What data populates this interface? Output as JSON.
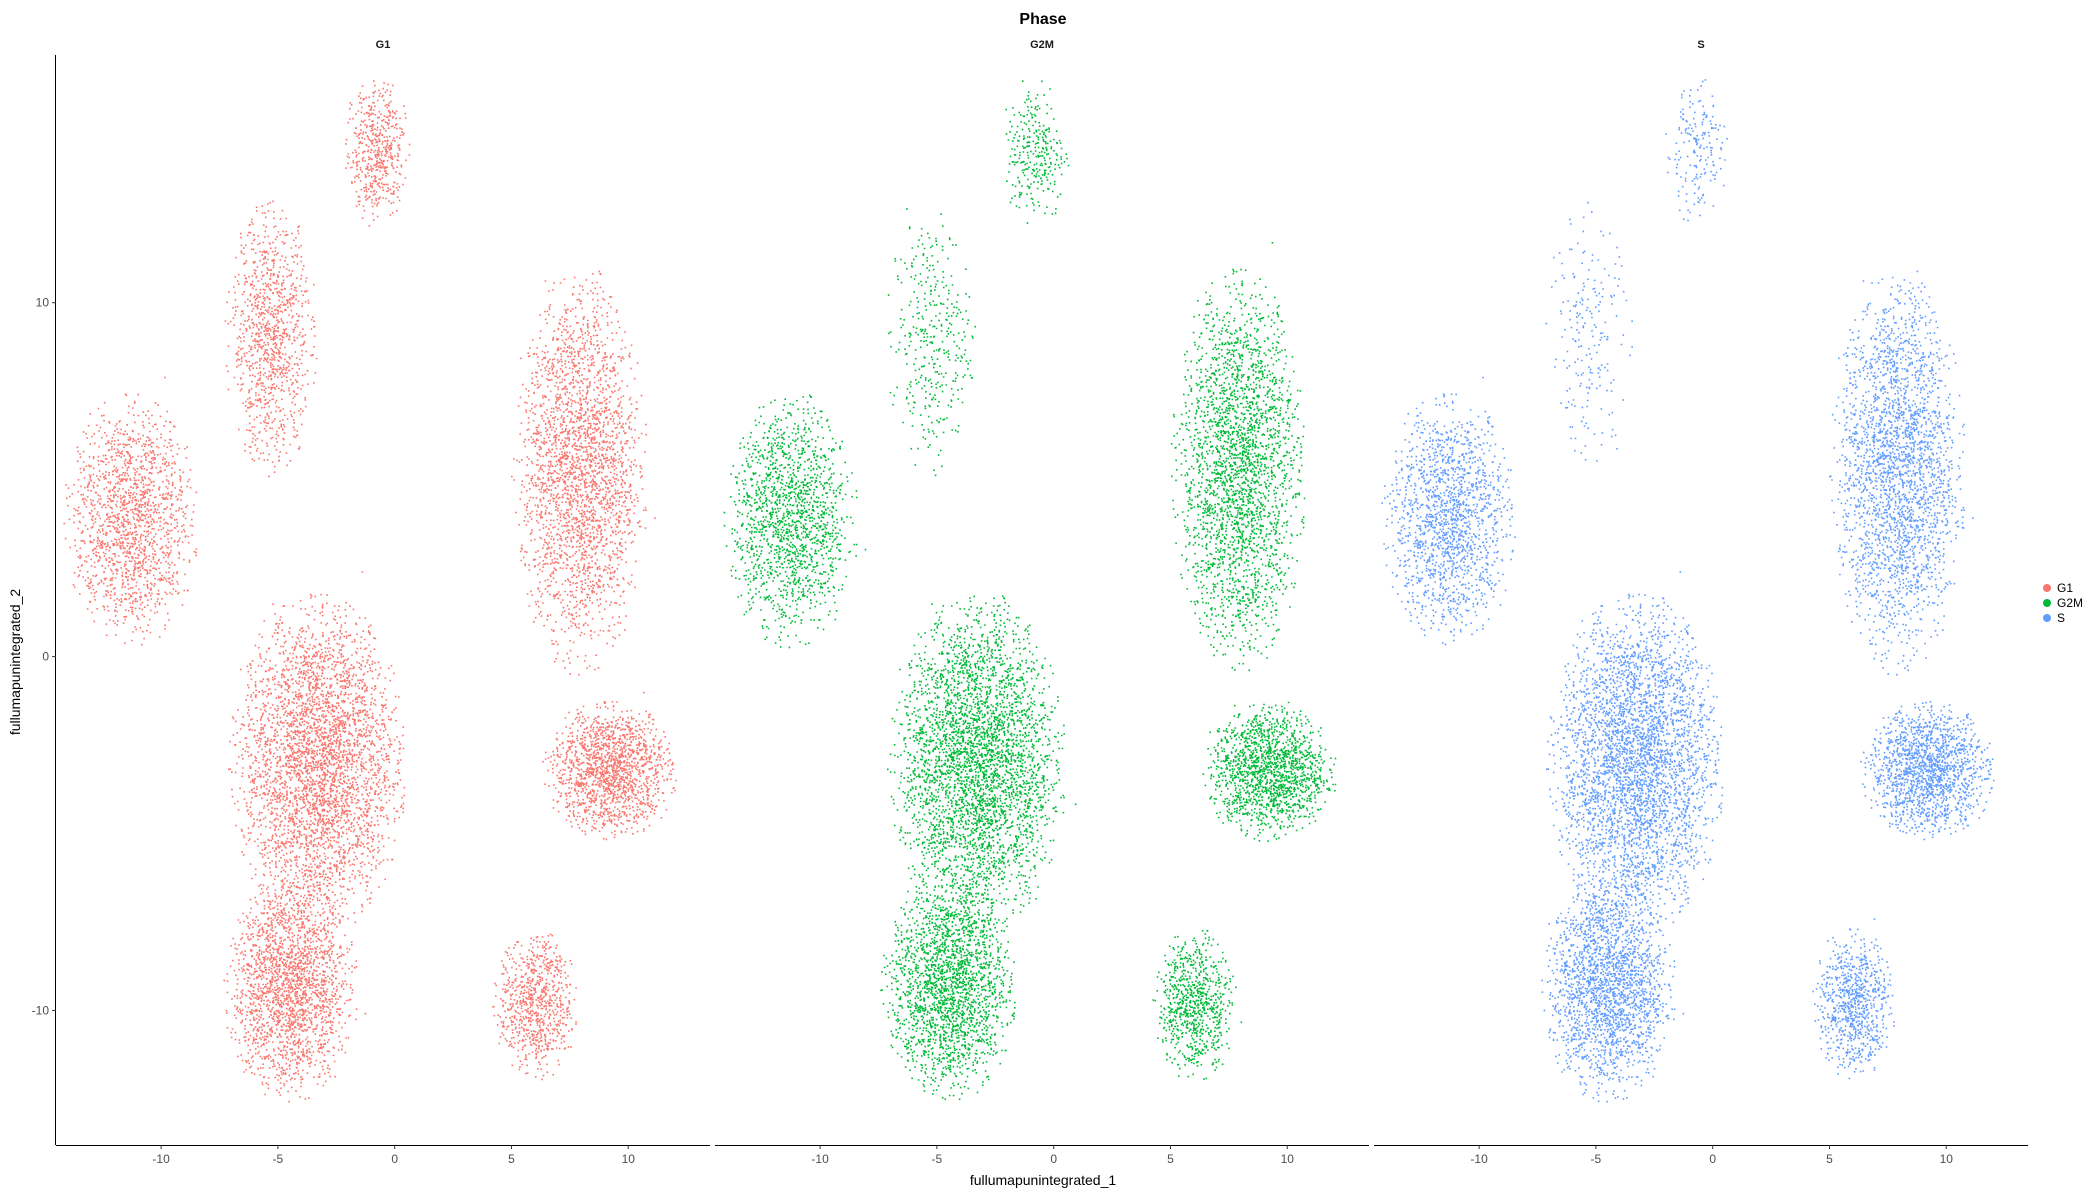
{
  "chart_data": {
    "type": "scatter",
    "title": "Phase",
    "xlabel": "fullumapunintegrated_1",
    "ylabel": "fullumapunintegrated_2",
    "xlim": [
      -14.5,
      13.5
    ],
    "ylim": [
      -13.8,
      17.0
    ],
    "xticks": [
      -10,
      -5,
      0,
      5,
      10
    ],
    "xtick_labels": [
      "-10",
      "-5",
      "0",
      "5",
      "10"
    ],
    "yticks": [
      -10,
      0,
      10
    ],
    "ytick_labels": [
      "-10",
      "0",
      "10"
    ],
    "grid": false,
    "legend_position": "right",
    "facets": [
      {
        "label": "G1",
        "color": "#F8766D",
        "density": 1.0
      },
      {
        "label": "G2M",
        "color": "#00BA38",
        "density": 1.0
      },
      {
        "label": "S",
        "color": "#619CFF",
        "density": 1.0
      }
    ],
    "legend": [
      {
        "label": "G1",
        "color": "#F8766D"
      },
      {
        "label": "G2M",
        "color": "#00BA38"
      },
      {
        "label": "S",
        "color": "#619CFF"
      }
    ],
    "clusters": [
      {
        "name": "top",
        "cx": -0.8,
        "cy": 14.3,
        "sx": 0.8,
        "sy": 1.2,
        "weight": 2,
        "sparse": [
          1.0,
          0.55,
          0.35
        ]
      },
      {
        "name": "upper-left",
        "cx": -5.3,
        "cy": 9.0,
        "sx": 1.1,
        "sy": 2.2,
        "weight": 4,
        "sparse": [
          1.0,
          0.35,
          0.2
        ]
      },
      {
        "name": "left",
        "cx": -11.3,
        "cy": 3.9,
        "sx": 1.6,
        "sy": 2.0,
        "weight": 6,
        "sparse": [
          1.0,
          1.0,
          1.0
        ]
      },
      {
        "name": "upper-right",
        "cx": 7.9,
        "cy": 5.3,
        "sx": 1.6,
        "sy": 3.2,
        "weight": 10,
        "sparse": [
          1.0,
          1.0,
          1.0
        ]
      },
      {
        "name": "lower-center",
        "cx": -3.3,
        "cy": -3.0,
        "sx": 2.1,
        "sy": 2.7,
        "weight": 14,
        "sparse": [
          1.0,
          1.0,
          1.0
        ]
      },
      {
        "name": "lower-left",
        "cx": -4.5,
        "cy": -9.3,
        "sx": 1.6,
        "sy": 1.8,
        "weight": 8,
        "sparse": [
          1.0,
          1.0,
          1.0
        ]
      },
      {
        "name": "right-middle",
        "cx": 9.2,
        "cy": -3.2,
        "sx": 1.6,
        "sy": 1.1,
        "weight": 6,
        "sparse": [
          1.0,
          1.0,
          1.0
        ]
      },
      {
        "name": "bottom-right",
        "cx": 6.0,
        "cy": -9.8,
        "sx": 1.0,
        "sy": 1.2,
        "weight": 3,
        "sparse": [
          1.0,
          1.0,
          1.0
        ]
      }
    ]
  }
}
